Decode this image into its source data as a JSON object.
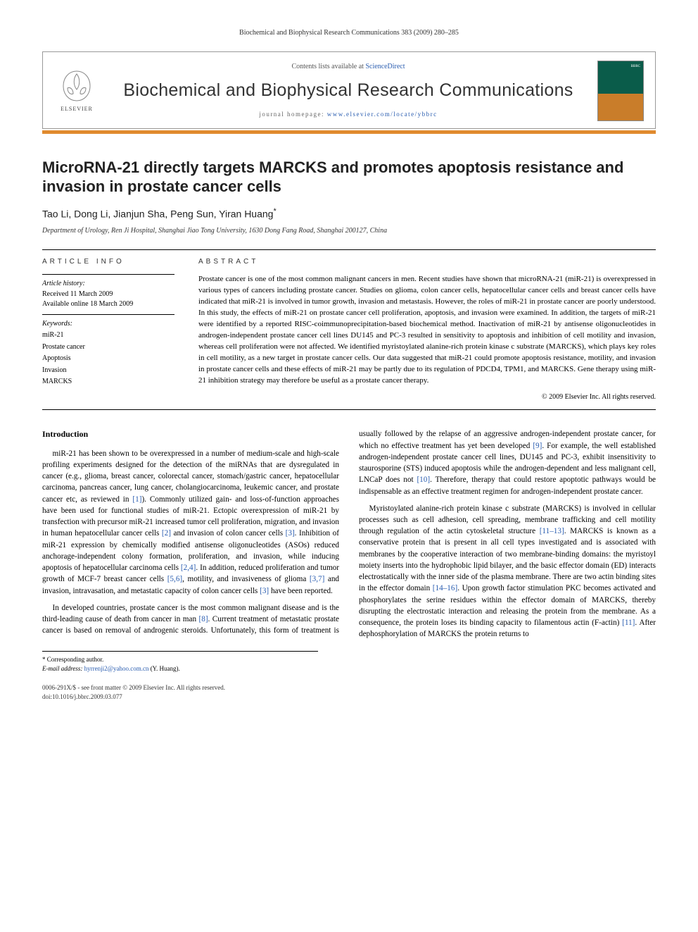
{
  "running_head": "Biochemical and Biophysical Research Communications 383 (2009) 280–285",
  "header": {
    "contents_prefix": "Contents lists available at ",
    "contents_link": "ScienceDirect",
    "journal_title": "Biochemical and Biophysical Research Communications",
    "homepage_prefix": "journal homepage: ",
    "homepage_url": "www.elsevier.com/locate/ybbrc",
    "elsevier_label": "ELSEVIER",
    "cover_label": "BBRC"
  },
  "colors": {
    "accent_bar": "#e08a2e",
    "link": "#2a5db0",
    "cover_top": "#0a5c4a",
    "cover_bottom": "#c97d2a"
  },
  "title": "MicroRNA-21 directly targets MARCKS and promotes apoptosis resistance and invasion in prostate cancer cells",
  "authors": "Tao Li, Dong Li, Jianjun Sha, Peng Sun, Yiran Huang",
  "corr_mark": "*",
  "affiliation": "Department of Urology, Ren Ji Hospital, Shanghai Jiao Tong University, 1630 Dong Fang Road, Shanghai 200127, China",
  "info": {
    "heading": "ARTICLE INFO",
    "history_label": "Article history:",
    "received": "Received 11 March 2009",
    "online": "Available online 18 March 2009",
    "keywords_label": "Keywords:",
    "keywords": [
      "miR-21",
      "Prostate cancer",
      "Apoptosis",
      "Invasion",
      "MARCKS"
    ]
  },
  "abstract": {
    "heading": "ABSTRACT",
    "text": "Prostate cancer is one of the most common malignant cancers in men. Recent studies have shown that microRNA-21 (miR-21) is overexpressed in various types of cancers including prostate cancer. Studies on glioma, colon cancer cells, hepatocellular cancer cells and breast cancer cells have indicated that miR-21 is involved in tumor growth, invasion and metastasis. However, the roles of miR-21 in prostate cancer are poorly understood. In this study, the effects of miR-21 on prostate cancer cell proliferation, apoptosis, and invasion were examined. In addition, the targets of miR-21 were identified by a reported RISC-coimmunoprecipitation-based biochemical method. Inactivation of miR-21 by antisense oligonucleotides in androgen-independent prostate cancer cell lines DU145 and PC-3 resulted in sensitivity to apoptosis and inhibition of cell motility and invasion, whereas cell proliferation were not affected. We identified myristoylated alanine-rich protein kinase c substrate (MARCKS), which plays key roles in cell motility, as a new target in prostate cancer cells. Our data suggested that miR-21 could promote apoptosis resistance, motility, and invasion in prostate cancer cells and these effects of miR-21 may be partly due to its regulation of PDCD4, TPM1, and MARCKS. Gene therapy using miR-21 inhibition strategy may therefore be useful as a prostate cancer therapy.",
    "copyright": "© 2009 Elsevier Inc. All rights reserved."
  },
  "intro": {
    "heading": "Introduction",
    "p1": "miR-21 has been shown to be overexpressed in a number of medium-scale and high-scale profiling experiments designed for the detection of the miRNAs that are dysregulated in cancer (e.g., glioma, breast cancer, colorectal cancer, stomach/gastric cancer, hepatocellular carcinoma, pancreas cancer, lung cancer, cholangiocarcinoma, leukemic cancer, and prostate cancer etc, as reviewed in [1]). Commonly utilized gain- and loss-of-function approaches have been used for functional studies of miR-21. Ectopic overexpression of miR-21 by transfection with precursor miR-21 increased tumor cell proliferation, migration, and invasion in human hepatocellular cancer cells [2] and invasion of colon cancer cells [3]. Inhibition of miR-21 expression by chemically modified antisense oligonucleotides (ASOs) reduced anchorage-independent colony formation, proliferation, and invasion, while inducing apoptosis of hepatocellular carcinoma cells [2,4]. In addition, reduced proliferation and tumor growth of MCF-7 breast cancer cells [5,6], motility, and invasiveness of glioma [3,7] and invasion, intravasation, and metastatic capacity of colon cancer cells [3] have been reported.",
    "p2": "In developed countries, prostate cancer is the most common malignant disease and is the third-leading cause of death from cancer in man [8]. Current treatment of metastatic prostate cancer is based on removal of androgenic steroids. Unfortunately, this form of treatment is usually followed by the relapse of an aggressive androgen-independent prostate cancer, for which no effective treatment has yet been developed [9]. For example, the well established androgen-independent prostate cancer cell lines, DU145 and PC-3, exhibit insensitivity to staurosporine (STS) induced apoptosis while the androgen-dependent and less malignant cell, LNCaP does not [10]. Therefore, therapy that could restore apoptotic pathways would be indispensable as an effective treatment regimen for androgen-independent prostate cancer.",
    "p3": "Myristoylated alanine-rich protein kinase c substrate (MARCKS) is involved in cellular processes such as cell adhesion, cell spreading, membrane trafficking and cell motility through regulation of the actin cytoskeletal structure [11–13]. MARCKS is known as a conservative protein that is present in all cell types investigated and is associated with membranes by the cooperative interaction of two membrane-binding domains: the myristoyl moiety inserts into the hydrophobic lipid bilayer, and the basic effector domain (ED) interacts electrostatically with the inner side of the plasma membrane. There are two actin binding sites in the effector domain [14–16]. Upon growth factor stimulation PKC becomes activated and phosphorylates the serine residues within the effector domain of MARCKS, thereby disrupting the electrostatic interaction and releasing the protein from the membrane. As a consequence, the protein loses its binding capacity to filamentous actin (F-actin) [11]. After dephosphorylation of MARCKS the protein returns to"
  },
  "footnote": {
    "corr": "* Corresponding author.",
    "email_label": "E-mail address:",
    "email": "hyrrenji2@yahoo.com.cn",
    "email_who": "(Y. Huang)."
  },
  "bottom": {
    "issn_line": "0006-291X/$ - see front matter © 2009 Elsevier Inc. All rights reserved.",
    "doi_line": "doi:10.1016/j.bbrc.2009.03.077"
  }
}
